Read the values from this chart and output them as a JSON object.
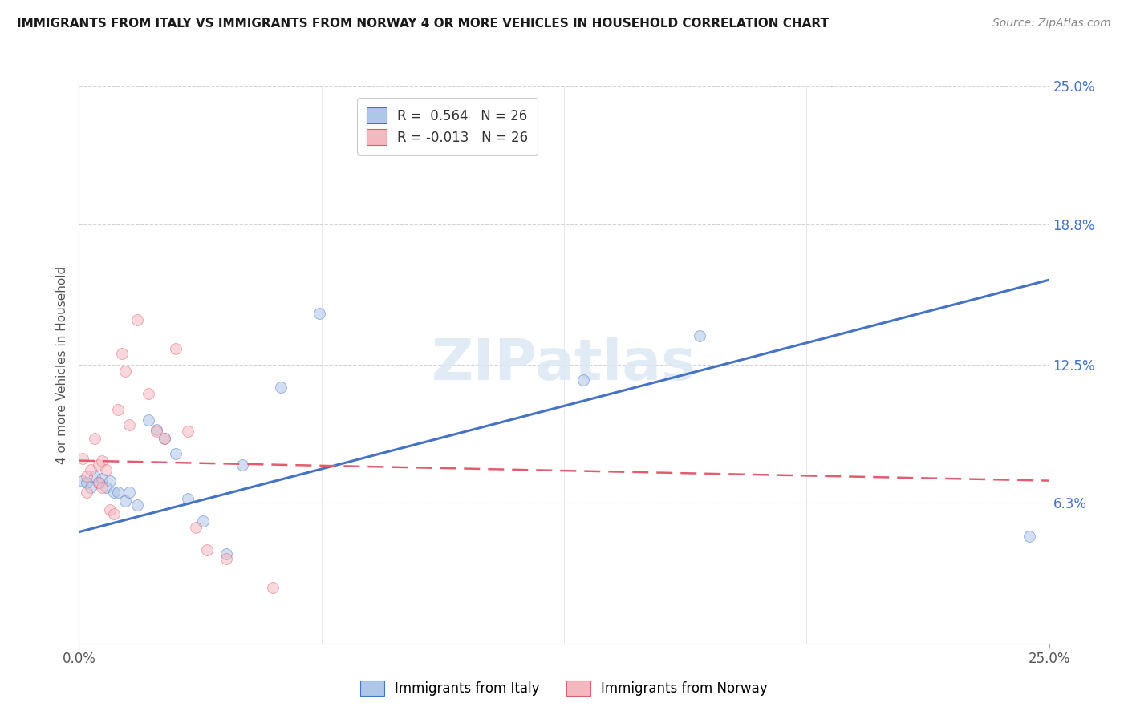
{
  "title": "IMMIGRANTS FROM ITALY VS IMMIGRANTS FROM NORWAY 4 OR MORE VEHICLES IN HOUSEHOLD CORRELATION CHART",
  "source": "Source: ZipAtlas.com",
  "ylabel": "4 or more Vehicles in Household",
  "watermark": "ZIPatlas",
  "xlim": [
    0.0,
    0.25
  ],
  "ylim": [
    0.0,
    0.25
  ],
  "legend_items": [
    {
      "label_r": "R = ",
      "r_val": " 0.564",
      "label_n": "   N = ",
      "n_val": "26",
      "color": "#aec6e8"
    },
    {
      "label_r": "R = ",
      "r_val": "-0.013",
      "label_n": "   N = ",
      "n_val": "26",
      "color": "#f4b8c1"
    }
  ],
  "italy_scatter_x": [
    0.001,
    0.002,
    0.003,
    0.004,
    0.005,
    0.006,
    0.007,
    0.008,
    0.009,
    0.01,
    0.012,
    0.013,
    0.015,
    0.018,
    0.02,
    0.022,
    0.025,
    0.028,
    0.032,
    0.038,
    0.042,
    0.052,
    0.062,
    0.13,
    0.16,
    0.245
  ],
  "italy_scatter_y": [
    0.073,
    0.072,
    0.07,
    0.075,
    0.072,
    0.074,
    0.07,
    0.073,
    0.068,
    0.068,
    0.064,
    0.068,
    0.062,
    0.1,
    0.096,
    0.092,
    0.085,
    0.065,
    0.055,
    0.04,
    0.08,
    0.115,
    0.148,
    0.118,
    0.138,
    0.048
  ],
  "norway_scatter_x": [
    0.001,
    0.002,
    0.002,
    0.003,
    0.004,
    0.005,
    0.005,
    0.006,
    0.006,
    0.007,
    0.008,
    0.009,
    0.01,
    0.011,
    0.012,
    0.013,
    0.015,
    0.018,
    0.02,
    0.022,
    0.025,
    0.028,
    0.03,
    0.033,
    0.038,
    0.05
  ],
  "norway_scatter_y": [
    0.083,
    0.068,
    0.075,
    0.078,
    0.092,
    0.072,
    0.08,
    0.07,
    0.082,
    0.078,
    0.06,
    0.058,
    0.105,
    0.13,
    0.122,
    0.098,
    0.145,
    0.112,
    0.095,
    0.092,
    0.132,
    0.095,
    0.052,
    0.042,
    0.038,
    0.025
  ],
  "italy_color": "#aec6e8",
  "norway_color": "#f4b8c1",
  "italy_line_color": "#4472c4",
  "norway_line_color": "#e05c6e",
  "grid_color": "#d3d3d3",
  "background_color": "#ffffff",
  "scatter_size": 100,
  "scatter_alpha": 0.55,
  "italy_line_start_y": 0.05,
  "italy_line_end_y": 0.163,
  "norway_line_start_y": 0.082,
  "norway_line_end_y": 0.073,
  "ytick_positions": [
    0.063,
    0.125,
    0.188,
    0.25
  ],
  "ytick_labels": [
    "6.3%",
    "12.5%",
    "18.8%",
    "25.0%"
  ]
}
